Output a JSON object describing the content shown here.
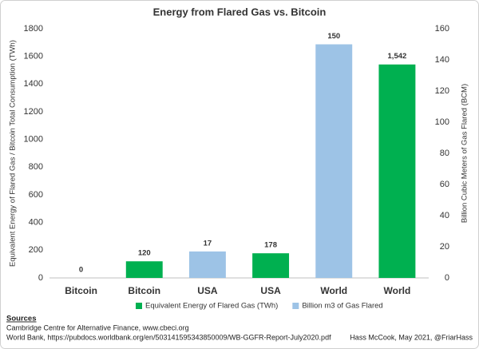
{
  "chart_data": {
    "type": "bar",
    "title": "Energy from Flared Gas vs. Bitcoin",
    "y_label": "Equivalent Energy of Flared Gas / Bitcoin Total Consumption (TWh)",
    "y2_label": "Billion Cubic Meters of Gas Flared (BCM)",
    "categories": [
      "Bitcoin",
      "Bitcoin",
      "USA",
      "USA",
      "World",
      "World"
    ],
    "series": [
      {
        "name": "Equivalent Energy of Flared Gas (TWh)",
        "color": "#00b050",
        "axis": "y",
        "values": [
          null,
          120,
          null,
          178,
          null,
          1542
        ],
        "value_labels": [
          null,
          "120",
          null,
          "178",
          null,
          "1,542"
        ]
      },
      {
        "name": "Billion m3 of Gas Flared",
        "color": "#9dc3e6",
        "axis": "y2",
        "values": [
          0,
          null,
          17,
          null,
          150,
          null
        ]
      }
    ],
    "ylim": [
      0,
      1800
    ],
    "yticks": [
      0,
      200,
      400,
      600,
      800,
      1000,
      1200,
      1400,
      1600,
      1800
    ],
    "y2lim": [
      0,
      160
    ],
    "y2ticks": [
      0,
      20,
      40,
      60,
      80,
      100,
      120,
      140,
      160
    ],
    "grid": false,
    "legend": "bottom",
    "sources": {
      "heading": "Sources",
      "lines": [
        "Cambridge Centre for Alternative Finance, www.cbeci.org",
        "World Bank, https://pubdocs.worldbank.org/en/503141595343850009/WB-GGFR-Report-July2020.pdf"
      ]
    },
    "credit": "Hass McCook, May 2021, @FriarHass"
  }
}
